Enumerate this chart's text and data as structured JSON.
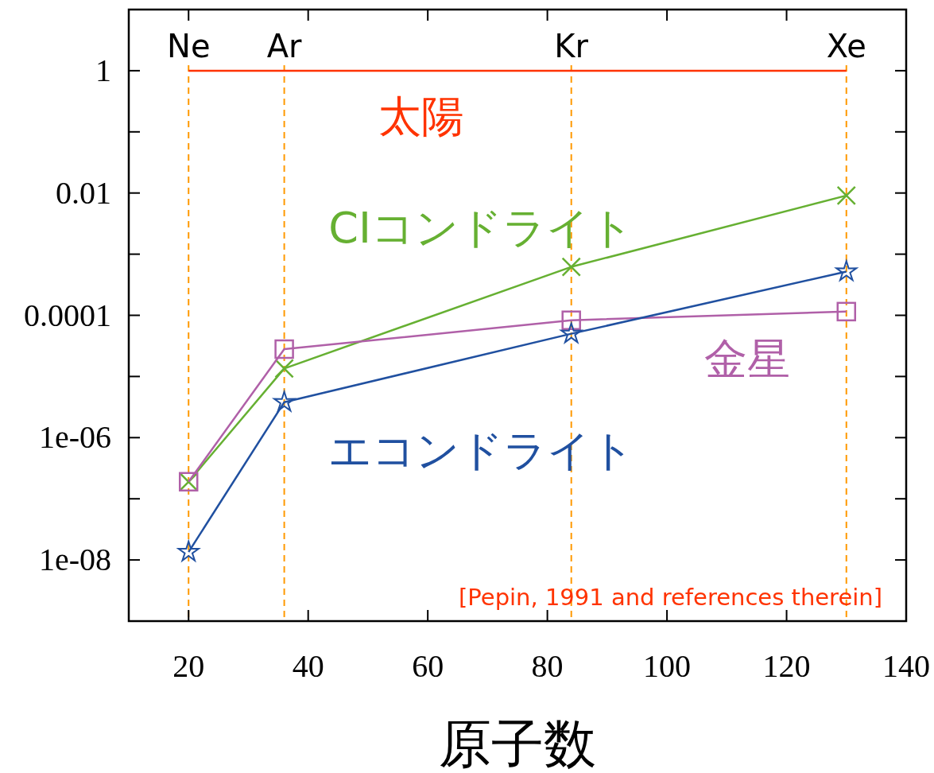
{
  "chart_data": {
    "type": "line",
    "xlabel": "原子数",
    "x": [
      20,
      36,
      84,
      130
    ],
    "series": [
      {
        "name": "太陽",
        "color": "#ff3300",
        "values": [
          1,
          1,
          1,
          1
        ],
        "marker": "none"
      },
      {
        "name": "CIコンドライト",
        "color": "#66b032",
        "values": [
          1.9e-07,
          1.35e-05,
          0.00062,
          0.0091
        ],
        "marker": "cross"
      },
      {
        "name": "金星",
        "color": "#b060a8",
        "values": [
          1.9e-07,
          2.8e-05,
          8.3e-05,
          0.000115
        ],
        "marker": "square"
      },
      {
        "name": "エコンドライト",
        "color": "#2050a0",
        "values": [
          1.35e-08,
          3.8e-06,
          5e-05,
          0.00052
        ],
        "marker": "star"
      }
    ],
    "log": "y",
    "xlim": [
      10,
      140
    ],
    "ylim": [
      1e-09,
      10
    ],
    "xticks": [
      20,
      40,
      60,
      80,
      100,
      120,
      140
    ],
    "yticks": [
      {
        "value": 1e-09,
        "label": null
      },
      {
        "value": 1e-08,
        "label": "1e-08"
      },
      {
        "value": 1e-07,
        "label": null
      },
      {
        "value": 1e-06,
        "label": "1e-06"
      },
      {
        "value": 1e-05,
        "label": null
      },
      {
        "value": 0.0001,
        "label": "0.0001"
      },
      {
        "value": 0.001,
        "label": null
      },
      {
        "value": 0.01,
        "label": "0.01"
      },
      {
        "value": 0.1,
        "label": null
      },
      {
        "value": 1,
        "label": "1"
      },
      {
        "value": 10,
        "label": null
      }
    ],
    "ref_lines": [
      {
        "axis": "x",
        "value": 20,
        "label": "Ne",
        "color": "#ff9900",
        "line_style": "dashed"
      },
      {
        "axis": "x",
        "value": 36,
        "label": "Ar",
        "color": "#ff9900",
        "line_style": "dashed"
      },
      {
        "axis": "x",
        "value": 84,
        "label": "Kr",
        "color": "#ff9900",
        "line_style": "dashed"
      },
      {
        "axis": "x",
        "value": 130,
        "label": "Xe",
        "color": "#ff9900",
        "line_style": "dashed"
      }
    ],
    "annotations": [
      "[Pepin, 1991 and references therein]"
    ],
    "grid": false
  }
}
